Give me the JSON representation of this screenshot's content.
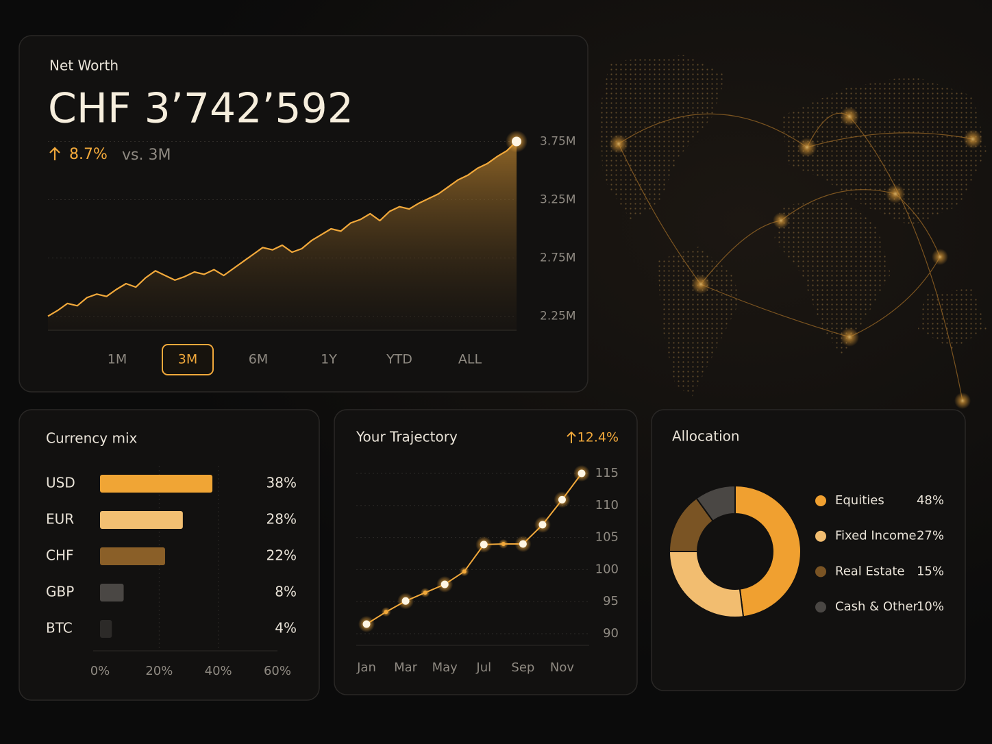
{
  "chart_data": [
    {
      "type": "area",
      "title": "Net Worth",
      "headline": "CHF 3’742’592",
      "change": "8.7%",
      "change_label": "vs. 3M",
      "values": [
        2250000,
        2300000,
        2360000,
        2340000,
        2410000,
        2440000,
        2420000,
        2480000,
        2530000,
        2500000,
        2580000,
        2640000,
        2600000,
        2560000,
        2590000,
        2630000,
        2610000,
        2650000,
        2600000,
        2660000,
        2720000,
        2780000,
        2840000,
        2820000,
        2860000,
        2800000,
        2830000,
        2900000,
        2950000,
        3000000,
        2980000,
        3050000,
        3080000,
        3130000,
        3070000,
        3150000,
        3190000,
        3170000,
        3220000,
        3260000,
        3300000,
        3360000,
        3420000,
        3460000,
        3520000,
        3560000,
        3620000,
        3670000,
        3750000
      ],
      "ylim": [
        2130000,
        3800000
      ],
      "yticks": [
        {
          "value": 2250000,
          "label": "2.25M"
        },
        {
          "value": 2750000,
          "label": "2.75M"
        },
        {
          "value": 3250000,
          "label": "3.25M"
        },
        {
          "value": 3750000,
          "label": "3.75M"
        }
      ],
      "color": "#f2a93b",
      "grid": true,
      "ranges": [
        "1M",
        "3M",
        "6M",
        "1Y",
        "YTD",
        "ALL"
      ],
      "selected_range": 1
    },
    {
      "type": "hbar",
      "title": "Currency mix",
      "categories": [
        "USD",
        "EUR",
        "CHF",
        "GBP",
        "BTC"
      ],
      "values": [
        38,
        28,
        22,
        8,
        4
      ],
      "value_labels": [
        "38%",
        "28%",
        "22%",
        "8%",
        "4%"
      ],
      "colors": [
        "#f0a535",
        "#f2bf72",
        "#8a5f28",
        "#4a4744",
        "#2c2a28"
      ],
      "xlim": [
        0,
        60
      ],
      "xticks": [
        {
          "value": 0,
          "label": "0%"
        },
        {
          "value": 20,
          "label": "20%"
        },
        {
          "value": 40,
          "label": "40%"
        },
        {
          "value": 60,
          "label": "60%"
        }
      ],
      "grid": true
    },
    {
      "type": "line",
      "title": "Your Trajectory",
      "change": "12.4%",
      "categories": [
        "Jan",
        null,
        "Mar",
        null,
        "May",
        null,
        "Jul",
        null,
        "Sep",
        null,
        "Nov",
        null
      ],
      "values": [
        91.5,
        93.4,
        95.1,
        96.4,
        97.7,
        99.7,
        103.9,
        104,
        104,
        107,
        110.9,
        115
      ],
      "ylim": [
        89,
        116
      ],
      "yticks": [
        90,
        95,
        100,
        105,
        110,
        115
      ],
      "color": "#f2a93b",
      "grid": true
    },
    {
      "type": "donut",
      "title": "Allocation",
      "categories": [
        "Equities",
        "Fixed Income",
        "Real Estate",
        "Cash & Other"
      ],
      "values": [
        48,
        27,
        15,
        10
      ],
      "value_labels": [
        "48%",
        "27%",
        "15%",
        "10%"
      ],
      "colors": [
        "#f0a030",
        "#f2bd70",
        "#7a5424",
        "#4a4744"
      ]
    }
  ]
}
